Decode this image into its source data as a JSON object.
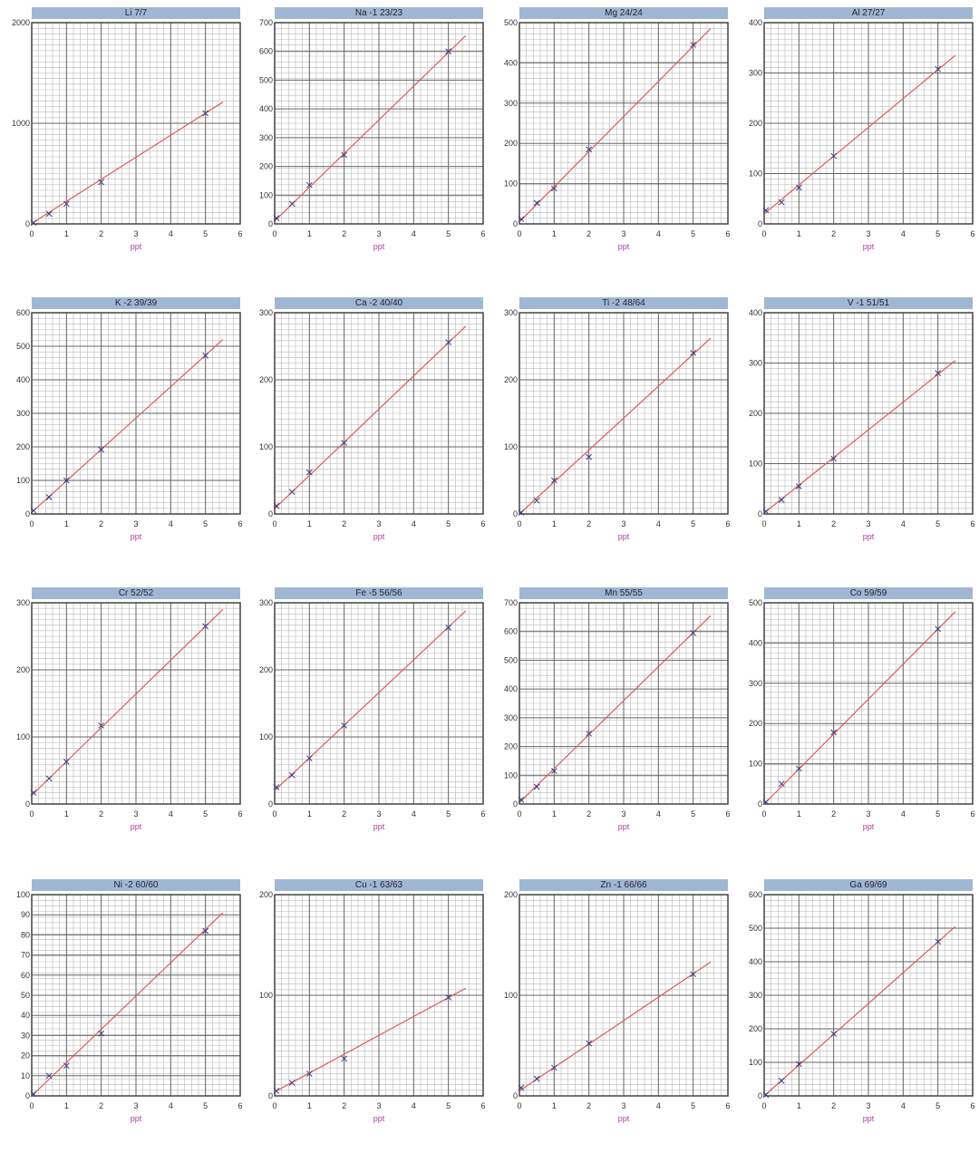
{
  "chart_data": [
    {
      "type": "scatter",
      "title": "Li 7/7",
      "xlabel": "ppt",
      "xlim": [
        0,
        6
      ],
      "xticks": [
        "0",
        "1",
        "2",
        "3",
        "4",
        "5",
        "6"
      ],
      "ylim": [
        0,
        2000
      ],
      "yticks": [
        "0",
        "1000",
        "2000"
      ],
      "x": [
        0,
        0.5,
        1,
        2,
        5
      ],
      "values": [
        10,
        100,
        200,
        415,
        1100
      ],
      "fit_line": [
        [
          0,
          5
        ],
        [
          5.5,
          1210
        ]
      ]
    },
    {
      "type": "scatter",
      "title": "Na -1 23/23",
      "xlabel": "ppt",
      "xlim": [
        0,
        6
      ],
      "xticks": [
        "0",
        "1",
        "2",
        "3",
        "4",
        "5",
        "6"
      ],
      "ylim": [
        0,
        700
      ],
      "yticks": [
        "0",
        "100",
        "200",
        "300",
        "400",
        "500",
        "600",
        "700"
      ],
      "x": [
        0,
        0.5,
        1,
        2,
        5
      ],
      "values": [
        20,
        70,
        135,
        240,
        600
      ],
      "fit_line": [
        [
          0,
          10
        ],
        [
          5.5,
          655
        ]
      ]
    },
    {
      "type": "scatter",
      "title": "Mg 24/24",
      "xlabel": "ppt",
      "xlim": [
        0,
        6
      ],
      "xticks": [
        "0",
        "1",
        "2",
        "3",
        "4",
        "5",
        "6"
      ],
      "ylim": [
        0,
        500
      ],
      "yticks": [
        "0",
        "100",
        "200",
        "300",
        "400",
        "500"
      ],
      "x": [
        0,
        0.5,
        1,
        2,
        5
      ],
      "values": [
        12,
        52,
        88,
        185,
        445
      ],
      "fit_line": [
        [
          0,
          5
        ],
        [
          5.5,
          485
        ]
      ]
    },
    {
      "type": "scatter",
      "title": "Al 27/27",
      "xlabel": "ppt",
      "xlim": [
        0,
        6
      ],
      "xticks": [
        "0",
        "1",
        "2",
        "3",
        "4",
        "5",
        "6"
      ],
      "ylim": [
        0,
        400
      ],
      "yticks": [
        "0",
        "100",
        "200",
        "300",
        "400"
      ],
      "x": [
        0,
        0.5,
        1,
        2,
        5
      ],
      "values": [
        27,
        43,
        72,
        135,
        308
      ],
      "fit_line": [
        [
          0,
          20
        ],
        [
          5.5,
          335
        ]
      ]
    },
    {
      "type": "scatter",
      "title": "K -2 39/39",
      "xlabel": "ppt",
      "xlim": [
        0,
        6
      ],
      "xticks": [
        "0",
        "1",
        "2",
        "3",
        "4",
        "5",
        "6"
      ],
      "ylim": [
        0,
        600
      ],
      "yticks": [
        "0",
        "100",
        "200",
        "300",
        "400",
        "500",
        "600"
      ],
      "x": [
        0,
        0.5,
        1,
        2,
        5
      ],
      "values": [
        10,
        50,
        100,
        192,
        472
      ],
      "fit_line": [
        [
          0,
          5
        ],
        [
          5.5,
          520
        ]
      ]
    },
    {
      "type": "scatter",
      "title": "Ca -2 40/40",
      "xlabel": "ppt",
      "xlim": [
        0,
        6
      ],
      "xticks": [
        "0",
        "1",
        "2",
        "3",
        "4",
        "5",
        "6"
      ],
      "ylim": [
        0,
        300
      ],
      "yticks": [
        "0",
        "100",
        "200",
        "300"
      ],
      "x": [
        0,
        0.5,
        1,
        2,
        5
      ],
      "values": [
        12,
        33,
        62,
        106,
        256
      ],
      "fit_line": [
        [
          0,
          8
        ],
        [
          5.5,
          280
        ]
      ]
    },
    {
      "type": "scatter",
      "title": "Ti -2 48/64",
      "xlabel": "ppt",
      "xlim": [
        0,
        6
      ],
      "xticks": [
        "0",
        "1",
        "2",
        "3",
        "4",
        "5",
        "6"
      ],
      "ylim": [
        0,
        300
      ],
      "yticks": [
        "0",
        "100",
        "200",
        "300"
      ],
      "x": [
        0,
        0.5,
        1,
        2,
        5
      ],
      "values": [
        2,
        20,
        50,
        85,
        240
      ],
      "fit_line": [
        [
          0,
          0
        ],
        [
          5.5,
          262
        ]
      ]
    },
    {
      "type": "scatter",
      "title": "V -1 51/51",
      "xlabel": "ppt",
      "xlim": [
        0,
        6
      ],
      "xticks": [
        "0",
        "1",
        "2",
        "3",
        "4",
        "5",
        "6"
      ],
      "ylim": [
        0,
        400
      ],
      "yticks": [
        "0",
        "100",
        "200",
        "300",
        "400"
      ],
      "x": [
        0,
        0.5,
        1,
        2,
        5
      ],
      "values": [
        5,
        28,
        55,
        110,
        280
      ],
      "fit_line": [
        [
          0,
          2
        ],
        [
          5.5,
          305
        ]
      ]
    },
    {
      "type": "scatter",
      "title": "Cr 52/52",
      "xlabel": "ppt",
      "xlim": [
        0,
        6
      ],
      "xticks": [
        "0",
        "1",
        "2",
        "3",
        "4",
        "5",
        "6"
      ],
      "ylim": [
        0,
        300
      ],
      "yticks": [
        "0",
        "100",
        "200",
        "300"
      ],
      "x": [
        0,
        0.5,
        1,
        2,
        5
      ],
      "values": [
        17,
        38,
        63,
        117,
        265
      ],
      "fit_line": [
        [
          0,
          13
        ],
        [
          5.5,
          290
        ]
      ]
    },
    {
      "type": "scatter",
      "title": "Fe -5 56/56",
      "xlabel": "ppt",
      "xlim": [
        0,
        6
      ],
      "xticks": [
        "0",
        "1",
        "2",
        "3",
        "4",
        "5",
        "6"
      ],
      "ylim": [
        0,
        300
      ],
      "yticks": [
        "0",
        "100",
        "200",
        "300"
      ],
      "x": [
        0,
        0.5,
        1,
        2,
        5
      ],
      "values": [
        25,
        43,
        68,
        117,
        263
      ],
      "fit_line": [
        [
          0,
          20
        ],
        [
          5.5,
          288
        ]
      ]
    },
    {
      "type": "scatter",
      "title": "Mn 55/55",
      "xlabel": "ppt",
      "xlim": [
        0,
        6
      ],
      "xticks": [
        "0",
        "1",
        "2",
        "3",
        "4",
        "5",
        "6"
      ],
      "ylim": [
        0,
        700
      ],
      "yticks": [
        "0",
        "100",
        "200",
        "300",
        "400",
        "500",
        "600",
        "700"
      ],
      "x": [
        0,
        0.5,
        1,
        2,
        5
      ],
      "values": [
        15,
        60,
        115,
        245,
        595
      ],
      "fit_line": [
        [
          0,
          5
        ],
        [
          5.5,
          655
        ]
      ]
    },
    {
      "type": "scatter",
      "title": "Co 59/59",
      "xlabel": "ppt",
      "xlim": [
        0,
        6
      ],
      "xticks": [
        "0",
        "1",
        "2",
        "3",
        "4",
        "5",
        "6"
      ],
      "ylim": [
        0,
        500
      ],
      "yticks": [
        "0",
        "100",
        "200",
        "300",
        "400",
        "500"
      ],
      "x": [
        0,
        0.5,
        1,
        2,
        5
      ],
      "values": [
        5,
        50,
        88,
        178,
        435
      ],
      "fit_line": [
        [
          0,
          0
        ],
        [
          5.5,
          478
        ]
      ]
    },
    {
      "type": "scatter",
      "title": "Ni -2 60/60",
      "xlabel": "ppt",
      "xlim": [
        0,
        6
      ],
      "xticks": [
        "0",
        "1",
        "2",
        "3",
        "4",
        "5",
        "6"
      ],
      "ylim": [
        0,
        100
      ],
      "yticks": [
        "0",
        "10",
        "20",
        "30",
        "40",
        "50",
        "60",
        "70",
        "80",
        "90",
        "100"
      ],
      "x": [
        0,
        0.5,
        1,
        2,
        5
      ],
      "values": [
        1,
        10,
        15,
        31,
        82
      ],
      "fit_line": [
        [
          0,
          0
        ],
        [
          5.5,
          91
        ]
      ]
    },
    {
      "type": "scatter",
      "title": "Cu -1 63/63",
      "xlabel": "ppt",
      "xlim": [
        0,
        6
      ],
      "xticks": [
        "0",
        "1",
        "2",
        "3",
        "4",
        "5",
        "6"
      ],
      "ylim": [
        0,
        200
      ],
      "yticks": [
        "0",
        "100",
        "200"
      ],
      "x": [
        0,
        0.5,
        1,
        2,
        5
      ],
      "values": [
        5,
        13,
        22,
        37,
        98
      ],
      "fit_line": [
        [
          0,
          4
        ],
        [
          5.5,
          107
        ]
      ]
    },
    {
      "type": "scatter",
      "title": "Zn -1 66/66",
      "xlabel": "ppt",
      "xlim": [
        0,
        6
      ],
      "xticks": [
        "0",
        "1",
        "2",
        "3",
        "4",
        "5",
        "6"
      ],
      "ylim": [
        0,
        200
      ],
      "yticks": [
        "0",
        "100",
        "200"
      ],
      "x": [
        0,
        0.5,
        1,
        2,
        5
      ],
      "values": [
        8,
        17,
        28,
        52,
        121
      ],
      "fit_line": [
        [
          0,
          5
        ],
        [
          5.5,
          133
        ]
      ]
    },
    {
      "type": "scatter",
      "title": "Ga 69/69",
      "xlabel": "ppt",
      "xlim": [
        0,
        6
      ],
      "xticks": [
        "0",
        "1",
        "2",
        "3",
        "4",
        "5",
        "6"
      ],
      "ylim": [
        0,
        600
      ],
      "yticks": [
        "0",
        "100",
        "200",
        "300",
        "400",
        "500",
        "600"
      ],
      "x": [
        0,
        0.5,
        1,
        2,
        5
      ],
      "values": [
        3,
        45,
        95,
        185,
        460
      ],
      "fit_line": [
        [
          0,
          0
        ],
        [
          5.5,
          505
        ]
      ]
    }
  ],
  "colors": {
    "title_bar": "#9fb7d3",
    "fit_line": "#e05a5a",
    "marker": "#3a3a8a",
    "xlabel": "#b03aa0"
  }
}
